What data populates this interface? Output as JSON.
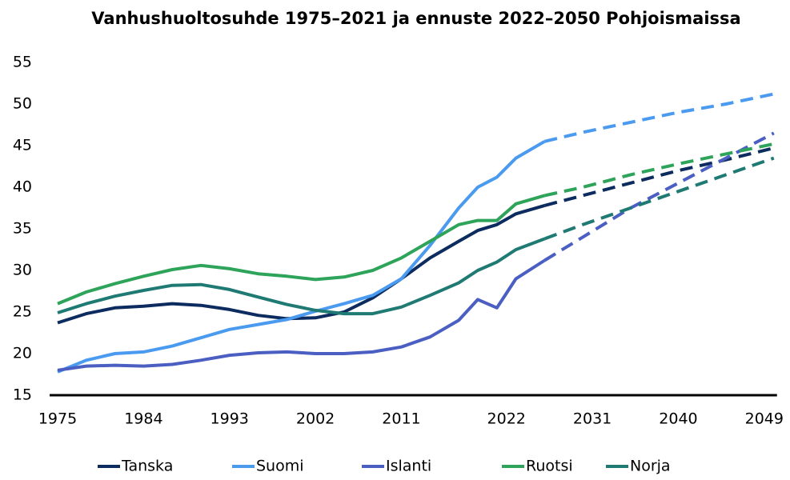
{
  "chart_data": {
    "type": "line",
    "title": "Vanhushuoltosuhde 1975–2021 ja ennuste 2022–2050 Pohjoismaissa",
    "x": [
      1975,
      1978,
      1981,
      1984,
      1987,
      1990,
      1993,
      1996,
      1999,
      2002,
      2005,
      2008,
      2011,
      2014,
      2017,
      2019,
      2021,
      2023,
      2026,
      2030,
      2035,
      2040,
      2045,
      2050
    ],
    "xlim": [
      1975,
      2050
    ],
    "xticks": [
      1975,
      1984,
      1993,
      2002,
      2011,
      2022,
      2031,
      2040,
      2049
    ],
    "ylim": [
      15,
      55
    ],
    "yticks": [
      15,
      20,
      25,
      30,
      35,
      40,
      45,
      50,
      55
    ],
    "grid": false,
    "legend": "bottom",
    "series": [
      {
        "name": "Tanska",
        "color": "#0c2b5e",
        "values": [
          23.7,
          24.8,
          25.5,
          25.7,
          26.0,
          25.8,
          25.3,
          24.6,
          24.2,
          24.3,
          25.0,
          26.7,
          29.0,
          31.5,
          33.5,
          34.8,
          35.5,
          36.8,
          37.8,
          null,
          null,
          null,
          null,
          null
        ],
        "forecast": [
          null,
          null,
          null,
          null,
          null,
          null,
          null,
          null,
          null,
          null,
          null,
          null,
          null,
          null,
          null,
          null,
          null,
          null,
          37.8,
          39.0,
          40.5,
          42.0,
          43.3,
          44.7
        ]
      },
      {
        "name": "Suomi",
        "color": "#4a9af0",
        "values": [
          17.8,
          19.2,
          20.0,
          20.2,
          20.9,
          21.9,
          22.9,
          23.5,
          24.1,
          25.1,
          26.0,
          27.0,
          29.0,
          33.0,
          37.5,
          40.0,
          41.2,
          43.5,
          45.5,
          null,
          null,
          null,
          null,
          null
        ],
        "forecast": [
          null,
          null,
          null,
          null,
          null,
          null,
          null,
          null,
          null,
          null,
          null,
          null,
          null,
          null,
          null,
          null,
          null,
          null,
          45.5,
          46.6,
          47.8,
          49.0,
          50.0,
          51.2
        ]
      },
      {
        "name": "Islanti",
        "color": "#4a5fc1",
        "values": [
          18.0,
          18.5,
          18.6,
          18.5,
          18.7,
          19.2,
          19.8,
          20.1,
          20.2,
          20.0,
          20.0,
          20.2,
          20.8,
          22.0,
          24.0,
          26.5,
          25.5,
          29.0,
          31.2,
          null,
          null,
          null,
          null,
          null
        ],
        "forecast": [
          null,
          null,
          null,
          null,
          null,
          null,
          null,
          null,
          null,
          null,
          null,
          null,
          null,
          null,
          null,
          null,
          null,
          null,
          31.2,
          34.0,
          37.5,
          40.5,
          43.5,
          46.5
        ]
      },
      {
        "name": "Ruotsi",
        "color": "#2ea35a",
        "values": [
          26.0,
          27.4,
          28.4,
          29.3,
          30.1,
          30.6,
          30.2,
          29.6,
          29.3,
          28.9,
          29.2,
          30.0,
          31.5,
          33.5,
          35.5,
          36.0,
          36.0,
          38.0,
          39.0,
          null,
          null,
          null,
          null,
          null
        ],
        "forecast": [
          null,
          null,
          null,
          null,
          null,
          null,
          null,
          null,
          null,
          null,
          null,
          null,
          null,
          null,
          null,
          null,
          null,
          null,
          39.0,
          40.0,
          41.5,
          42.8,
          44.0,
          45.2
        ]
      },
      {
        "name": "Norja",
        "color": "#1f7a73",
        "values": [
          24.9,
          26.0,
          26.9,
          27.6,
          28.2,
          28.3,
          27.7,
          26.8,
          25.9,
          25.2,
          24.8,
          24.8,
          25.6,
          27.0,
          28.5,
          30.0,
          31.0,
          32.5,
          33.8,
          null,
          null,
          null,
          null,
          null
        ],
        "forecast": [
          null,
          null,
          null,
          null,
          null,
          null,
          null,
          null,
          null,
          null,
          null,
          null,
          null,
          null,
          null,
          null,
          null,
          null,
          33.8,
          35.5,
          37.5,
          39.5,
          41.5,
          43.5
        ]
      }
    ]
  }
}
